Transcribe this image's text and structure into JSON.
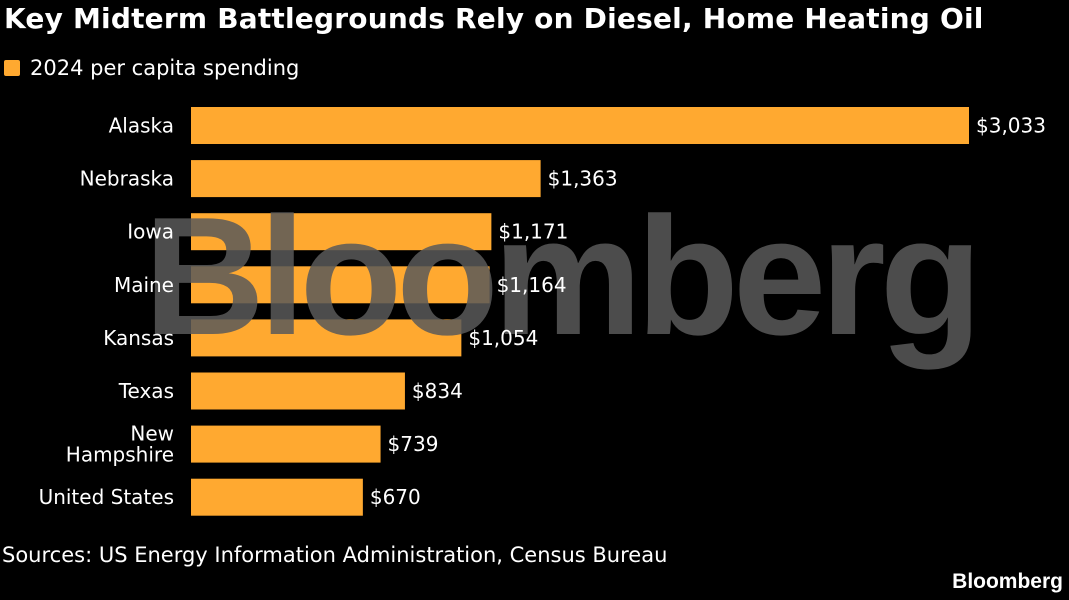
{
  "chart_data": {
    "type": "bar",
    "orientation": "horizontal",
    "title": "Key Midterm Battlegrounds Rely on Diesel, Home Heating Oil",
    "series": [
      {
        "name": "2024 per capita spending",
        "color": "#FFA930",
        "values": [
          3033,
          1363,
          1171,
          1164,
          1054,
          834,
          739,
          670
        ]
      }
    ],
    "categories": [
      "Alaska",
      "Nebraska",
      "Iowa",
      "Maine",
      "Kansas",
      "Texas",
      "New Hampshire",
      "United States"
    ],
    "category_lines": [
      [
        "Alaska"
      ],
      [
        "Nebraska"
      ],
      [
        "Iowa"
      ],
      [
        "Maine"
      ],
      [
        "Kansas"
      ],
      [
        "Texas"
      ],
      [
        "New",
        "Hampshire"
      ],
      [
        "United States"
      ]
    ],
    "value_labels": [
      "$3,033",
      "$1,363",
      "$1,171",
      "$1,164",
      "$1,054",
      "$834",
      "$739",
      "$670"
    ],
    "xlim": [
      0,
      3033
    ],
    "grid": false,
    "legend_position": "top-left"
  },
  "legend": {
    "label": "2024 per capita spending"
  },
  "source": "Sources: US Energy Information Administration, Census Bureau",
  "brand": "Bloomberg",
  "watermark": "Bloomberg",
  "colors": {
    "background": "#000000",
    "bar": "#FFA930",
    "text": "#FFFFFF",
    "watermark": "#595959"
  }
}
